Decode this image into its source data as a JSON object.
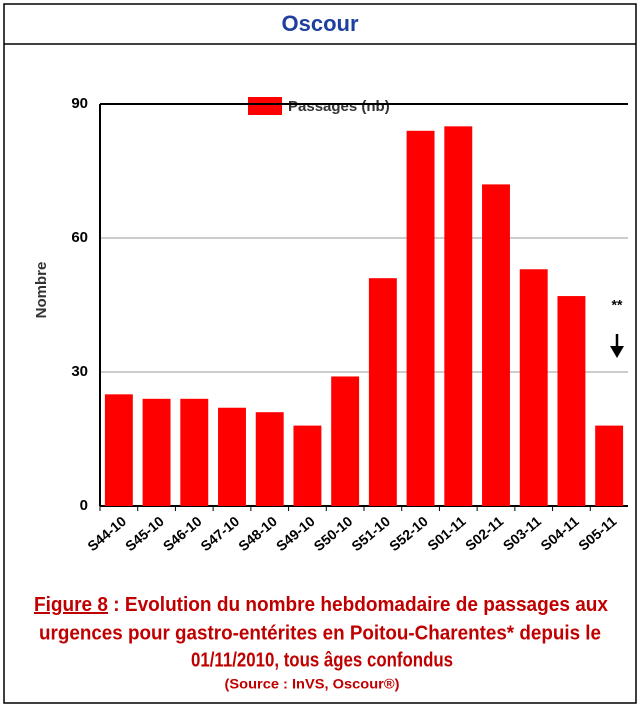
{
  "chart_data": {
    "type": "bar",
    "title": "Oscour",
    "y_label": "Nombre",
    "categories": [
      "S44-10",
      "S45-10",
      "S46-10",
      "S47-10",
      "S48-10",
      "S49-10",
      "S50-10",
      "S51-10",
      "S52-10",
      "S01-11",
      "S02-11",
      "S03-11",
      "S04-11",
      "S05-11"
    ],
    "series": [
      {
        "name": "Passages (nb)",
        "color": "#ff0000",
        "values": [
          25,
          24,
          24,
          22,
          21,
          18,
          29,
          51,
          84,
          85,
          72,
          53,
          47,
          18
        ]
      }
    ],
    "ylim": [
      0,
      90
    ],
    "yticks": [
      0,
      30,
      60,
      90
    ],
    "grid": true,
    "legend": "top",
    "annotation": "**",
    "caption": {
      "label": "Figure 8",
      "lines": [
        " : Evolution du nombre hebdomadaire de passages aux",
        "urgences pour gastro-entérites en Poitou-Charentes* depuis le",
        "01/11/2010, tous âges confondus"
      ],
      "source": "(Source : InVS, Oscour®)"
    }
  }
}
